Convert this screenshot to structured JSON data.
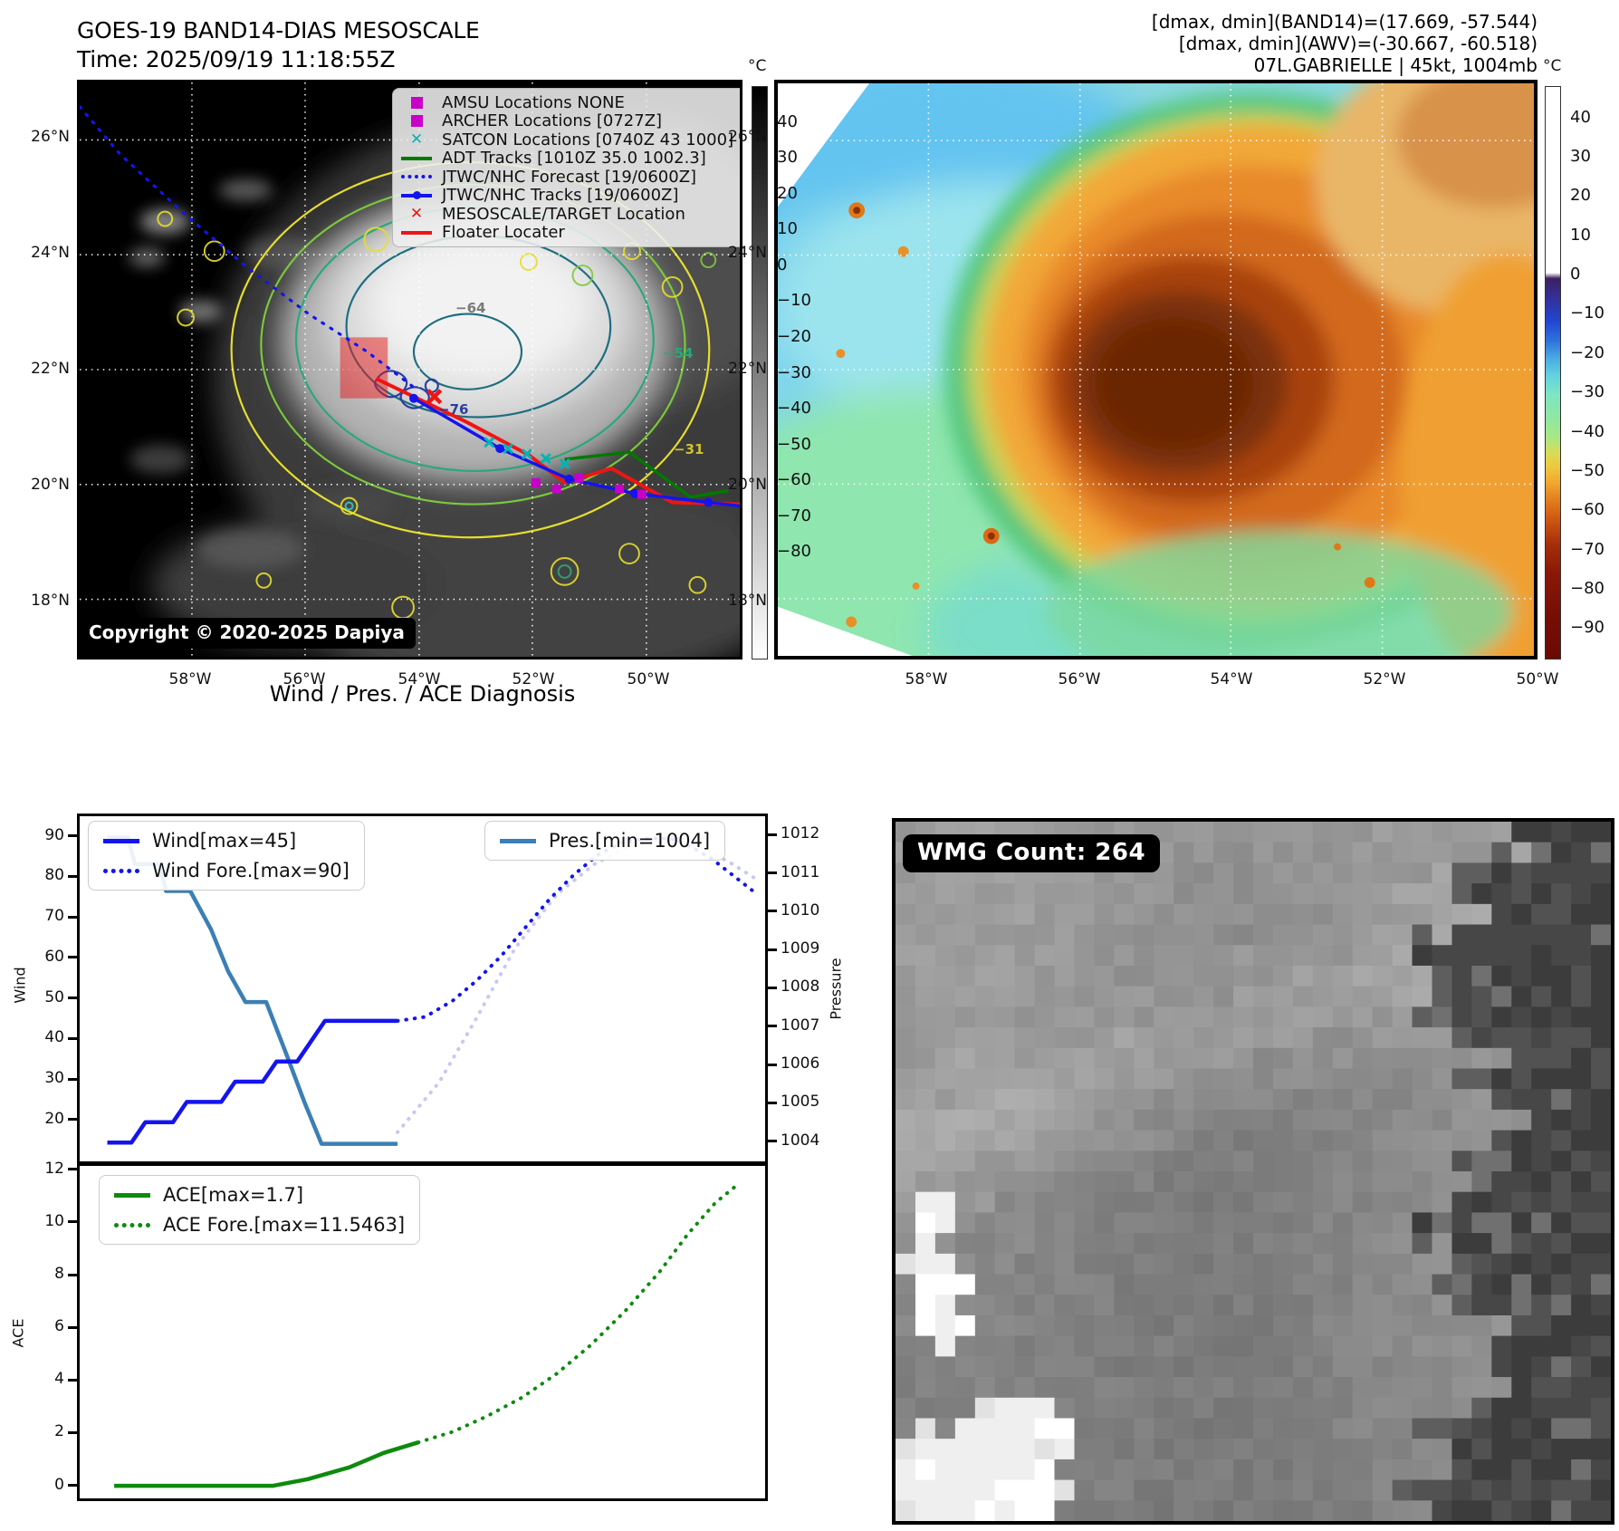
{
  "band14_panel": {
    "title_line1": "GOES-19 BAND14-DIAS MESOSCALE",
    "title_line2": "Time: 2025/09/19 11:18:55Z",
    "copyright": "Copyright © 2020-2025 Dapiya",
    "lat_labels": [
      "26°N",
      "24°N",
      "22°N",
      "20°N",
      "18°N"
    ],
    "lon_labels": [
      "58°W",
      "56°W",
      "54°W",
      "52°W",
      "50°W"
    ],
    "contour_labels": [
      "−64",
      "−54",
      "−76",
      "−31"
    ],
    "legend_items": [
      {
        "label": "AMSU Locations NONE",
        "marker": "square",
        "color": "#c800c8"
      },
      {
        "label": "ARCHER Locations [0727Z]",
        "marker": "square",
        "color": "#c800c8"
      },
      {
        "label": "SATCON Locations [0740Z 43 1000]",
        "marker": "x",
        "color": "#00b4b4"
      },
      {
        "label": "ADT Tracks [1010Z 35.0 1002.3]",
        "marker": "line",
        "color": "#007a00"
      },
      {
        "label": "JTWC/NHC Forecast [19/0600Z]",
        "marker": "dotted",
        "color": "#1414ee"
      },
      {
        "label": "JTWC/NHC Tracks [19/0600Z]",
        "marker": "line-dot",
        "color": "#1414ee"
      },
      {
        "label": "MESOSCALE/TARGET Location",
        "marker": "x",
        "color": "#f01414"
      },
      {
        "label": "Floater Locater",
        "marker": "line",
        "color": "#f01414"
      }
    ],
    "colorbar": {
      "unit": "°C",
      "ticks": [
        "40",
        "30",
        "20",
        "10",
        "0",
        "−10",
        "−20",
        "−30",
        "−40",
        "−50",
        "−60",
        "−70",
        "−80"
      ]
    }
  },
  "awv_panel": {
    "header_line1": "[dmax, dmin](BAND14)=(17.669, -57.544)",
    "header_line2": "[dmax, dmin](AWV)=(-30.667, -60.518)",
    "header_line3": "07L.GABRIELLE | 45kt, 1004mb",
    "lat_labels": [
      "26°N",
      "24°N",
      "22°N",
      "20°N",
      "18°N"
    ],
    "lon_labels": [
      "58°W",
      "56°W",
      "54°W",
      "52°W",
      "50°W"
    ],
    "colorbar": {
      "unit": "°C",
      "ticks": [
        "40",
        "30",
        "20",
        "10",
        "0",
        "−10",
        "−20",
        "−30",
        "−40",
        "−50",
        "−60",
        "−70",
        "−80",
        "−90"
      ]
    }
  },
  "wmg_panel": {
    "badge": "WMG Count: 264"
  },
  "chart_data": [
    {
      "type": "line",
      "title": "Wind / Pres. / ACE Diagnosis",
      "ylabel_left": "Wind",
      "ylabel_right": "Pressure",
      "ylim_left": [
        9,
        95.5
      ],
      "ylim_right": [
        1003.4,
        1012.55
      ],
      "yticks_left": [
        20,
        30,
        40,
        50,
        60,
        70,
        80,
        90
      ],
      "yticks_right": [
        1004,
        1005,
        1006,
        1007,
        1008,
        1009,
        1010,
        1011,
        1012
      ],
      "xlim": [
        0,
        1
      ],
      "grid": false,
      "legend_left": [
        {
          "name": "Wind[max=45]",
          "style": "solid",
          "color": "#1414ee"
        },
        {
          "name": "Wind Fore.[max=90]",
          "style": "dotted",
          "color": "#1414ee"
        }
      ],
      "legend_right": [
        {
          "name": "Pres.[min=1004]",
          "style": "solid",
          "color": "#3b7fb4"
        }
      ],
      "series": [
        {
          "name": "Pres. Forecast",
          "axis": "right",
          "style": "dotted",
          "color": "#c8c8f0",
          "width": 4,
          "points": [
            [
              0.46,
              1004.3
            ],
            [
              0.52,
              1005.6
            ],
            [
              0.575,
              1007.3
            ],
            [
              0.63,
              1009.1
            ],
            [
              0.69,
              1010.5
            ],
            [
              0.745,
              1011.3
            ],
            [
              0.8,
              1011.8
            ],
            [
              0.855,
              1011.9
            ],
            [
              0.905,
              1011.7
            ],
            [
              0.945,
              1011.3
            ],
            [
              0.98,
              1010.9
            ]
          ]
        },
        {
          "name": "Pres.",
          "axis": "right",
          "style": "solid",
          "color": "#3b7fb4",
          "width": 4.5,
          "points": [
            [
              0.04,
              1012.0
            ],
            [
              0.07,
              1012.0
            ],
            [
              0.08,
              1011.3
            ],
            [
              0.115,
              1011.3
            ],
            [
              0.125,
              1010.6
            ],
            [
              0.16,
              1010.6
            ],
            [
              0.19,
              1009.6
            ],
            [
              0.215,
              1008.5
            ],
            [
              0.24,
              1007.7
            ],
            [
              0.27,
              1007.7
            ],
            [
              0.3,
              1006.3
            ],
            [
              0.325,
              1005.1
            ],
            [
              0.35,
              1004.0
            ],
            [
              0.46,
              1004.0
            ]
          ]
        },
        {
          "name": "Wind Fore.",
          "axis": "left",
          "style": "dotted",
          "color": "#1414ee",
          "width": 4,
          "points": [
            [
              0.46,
              45
            ],
            [
              0.5,
              46
            ],
            [
              0.54,
              50
            ],
            [
              0.575,
              55
            ],
            [
              0.61,
              61
            ],
            [
              0.645,
              68
            ],
            [
              0.68,
              75
            ],
            [
              0.715,
              81
            ],
            [
              0.75,
              86
            ],
            [
              0.785,
              89
            ],
            [
              0.82,
              90
            ],
            [
              0.855,
              90
            ],
            [
              0.885,
              88
            ],
            [
              0.915,
              85
            ],
            [
              0.945,
              81
            ],
            [
              0.975,
              77
            ]
          ]
        },
        {
          "name": "Wind",
          "axis": "left",
          "style": "solid",
          "color": "#1414ee",
          "width": 4.5,
          "points": [
            [
              0.04,
              15
            ],
            [
              0.075,
              15
            ],
            [
              0.095,
              20
            ],
            [
              0.135,
              20
            ],
            [
              0.155,
              25
            ],
            [
              0.205,
              25
            ],
            [
              0.225,
              30
            ],
            [
              0.265,
              30
            ],
            [
              0.285,
              35
            ],
            [
              0.315,
              35
            ],
            [
              0.335,
              40
            ],
            [
              0.355,
              45
            ],
            [
              0.46,
              45
            ]
          ]
        }
      ]
    },
    {
      "type": "line",
      "ylabel_left": "ACE",
      "ylim_left": [
        -0.6,
        12.2
      ],
      "yticks_left": [
        0,
        2,
        4,
        6,
        8,
        10,
        12
      ],
      "xlim": [
        0,
        1
      ],
      "grid": false,
      "legend_left": [
        {
          "name": "ACE[max=1.7]",
          "style": "solid",
          "color": "#0e8a0e"
        },
        {
          "name": "ACE Fore.[max=11.5463]",
          "style": "dotted",
          "color": "#0e8a0e"
        }
      ],
      "series": [
        {
          "name": "ACE",
          "axis": "left",
          "style": "solid",
          "color": "#0e8a0e",
          "width": 4.5,
          "points": [
            [
              0.05,
              0.05
            ],
            [
              0.28,
              0.05
            ],
            [
              0.33,
              0.3
            ],
            [
              0.39,
              0.75
            ],
            [
              0.44,
              1.3
            ],
            [
              0.49,
              1.7
            ]
          ]
        },
        {
          "name": "ACE Fore.",
          "axis": "left",
          "style": "dotted",
          "color": "#0e8a0e",
          "width": 4,
          "points": [
            [
              0.49,
              1.7
            ],
            [
              0.54,
              2.1
            ],
            [
              0.59,
              2.7
            ],
            [
              0.64,
              3.4
            ],
            [
              0.69,
              4.3
            ],
            [
              0.74,
              5.4
            ],
            [
              0.79,
              6.7
            ],
            [
              0.84,
              8.2
            ],
            [
              0.88,
              9.6
            ],
            [
              0.92,
              10.8
            ],
            [
              0.955,
              11.55
            ]
          ]
        }
      ]
    }
  ]
}
